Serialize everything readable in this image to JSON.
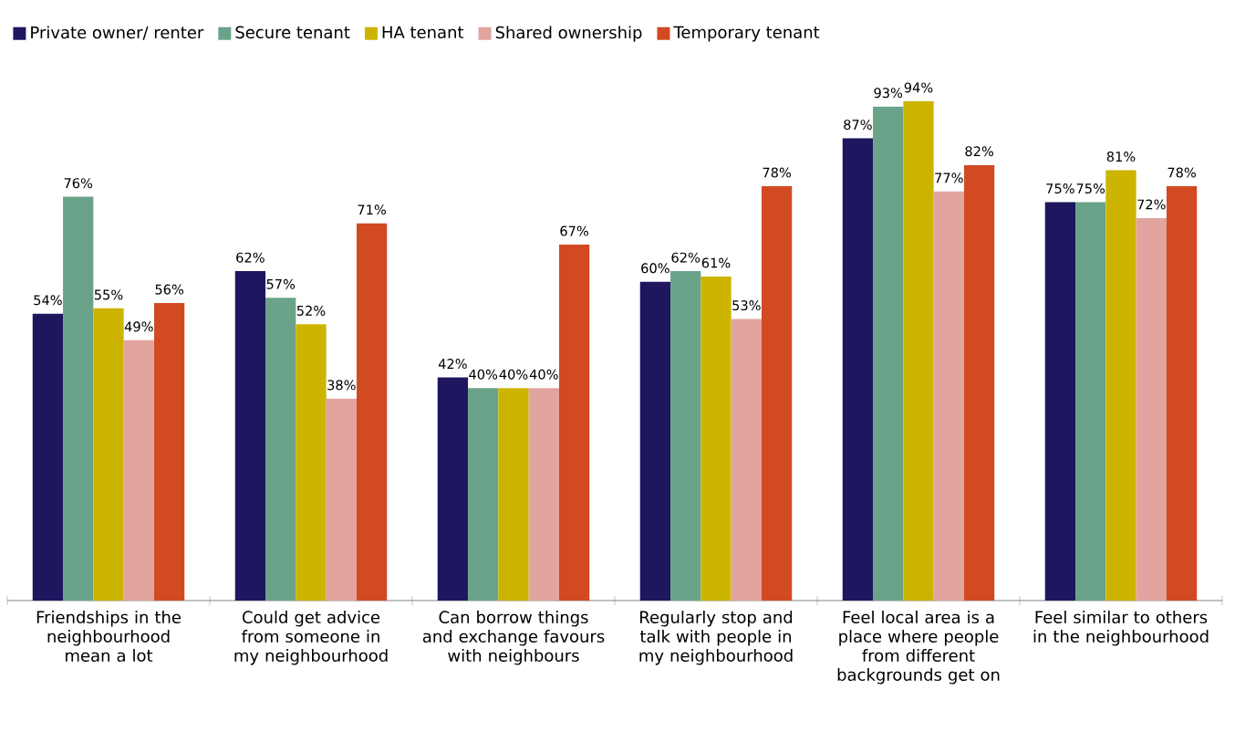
{
  "chart_data": {
    "type": "bar",
    "categories": [
      "Friendships in the neighbourhood mean a lot",
      "Could get advice from someone in my neighbourhood",
      "Can borrow things and exchange favours with neighbours",
      "Regularly stop and talk with people in my neighbourhood",
      "Feel local area is a place where people from different backgrounds get on",
      "Feel similar to others in the neighbourhood"
    ],
    "series": [
      {
        "name": "Private owner/ renter",
        "color": "#1f1660",
        "values": [
          54,
          62,
          42,
          60,
          87,
          75
        ],
        "value_labels": [
          "54%",
          "62%",
          "42%",
          "60%",
          "87%",
          "75%"
        ]
      },
      {
        "name": "Secure tenant",
        "color": "#6aa38a",
        "values": [
          76,
          57,
          40,
          62,
          93,
          75
        ],
        "value_labels": [
          "76%",
          "57%",
          "40%",
          "62%",
          "93%",
          "75%"
        ]
      },
      {
        "name": "HA tenant",
        "color": "#ccb400",
        "values": [
          55,
          52,
          40,
          61,
          94,
          81
        ],
        "value_labels": [
          "55%",
          "52%",
          "40%",
          "61%",
          "94%",
          "81%"
        ]
      },
      {
        "name": "Shared ownership",
        "color": "#e2a49f",
        "values": [
          49,
          38,
          40,
          53,
          77,
          72
        ],
        "value_labels": [
          "49%",
          "38%",
          "40%",
          "53%",
          "77%",
          "72%"
        ]
      },
      {
        "name": "Temporary tenant",
        "color": "#d24a22",
        "values": [
          56,
          71,
          67,
          78,
          82,
          78
        ],
        "value_labels": [
          "56%",
          "71%",
          "67%",
          "78%",
          "82%",
          "78%"
        ]
      }
    ],
    "legend": "top left"
  }
}
